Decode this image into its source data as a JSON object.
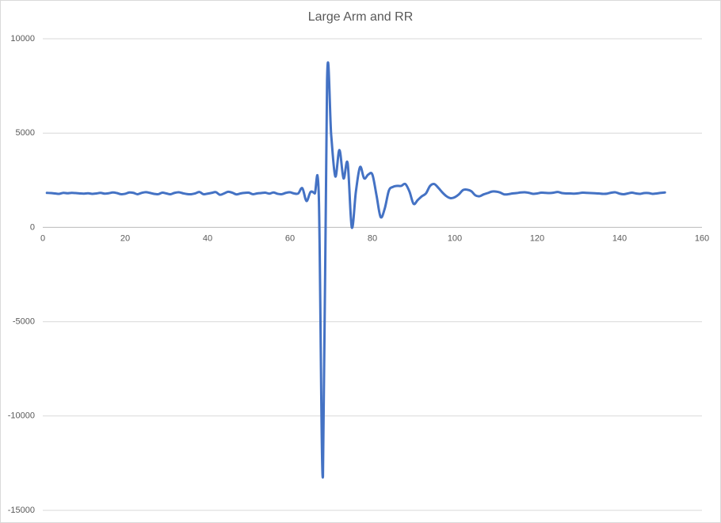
{
  "chart_data": {
    "type": "line",
    "title": "Large Arm and RR",
    "smooth": true,
    "grid": true,
    "xlim": [
      0,
      160
    ],
    "xticks": [
      0,
      20,
      40,
      60,
      80,
      100,
      120,
      140,
      160
    ],
    "ylim": [
      -15000,
      10000
    ],
    "yticks": [
      -15000,
      -10000,
      -5000,
      0,
      5000,
      10000
    ],
    "x": [
      1,
      2,
      3,
      4,
      5,
      6,
      7,
      8,
      9,
      10,
      11,
      12,
      13,
      14,
      15,
      16,
      17,
      18,
      19,
      20,
      21,
      22,
      23,
      24,
      25,
      26,
      27,
      28,
      29,
      30,
      31,
      32,
      33,
      34,
      35,
      36,
      37,
      38,
      39,
      40,
      41,
      42,
      43,
      44,
      45,
      46,
      47,
      48,
      49,
      50,
      51,
      52,
      53,
      54,
      55,
      56,
      57,
      58,
      59,
      60,
      61,
      62,
      63,
      64,
      65,
      66,
      67,
      68,
      69,
      70,
      71,
      72,
      73,
      74,
      75,
      76,
      77,
      78,
      79,
      80,
      81,
      82,
      83,
      84,
      85,
      86,
      87,
      88,
      89,
      90,
      91,
      92,
      93,
      94,
      95,
      96,
      97,
      98,
      99,
      100,
      101,
      102,
      103,
      104,
      105,
      106,
      107,
      108,
      109,
      110,
      111,
      112,
      113,
      114,
      115,
      116,
      117,
      118,
      119,
      120,
      121,
      122,
      123,
      124,
      125,
      126,
      127,
      128,
      129,
      130,
      131,
      132,
      133,
      134,
      135,
      136,
      137,
      138,
      139,
      140,
      141,
      142,
      143,
      144,
      145,
      146,
      147,
      148,
      149,
      150,
      151
    ],
    "series": [
      {
        "color": "#4472c4",
        "values": [
          1830,
          1820,
          1800,
          1780,
          1830,
          1810,
          1830,
          1820,
          1800,
          1790,
          1810,
          1780,
          1800,
          1830,
          1790,
          1810,
          1850,
          1820,
          1760,
          1780,
          1850,
          1830,
          1760,
          1830,
          1870,
          1830,
          1780,
          1760,
          1840,
          1800,
          1760,
          1830,
          1860,
          1810,
          1770,
          1760,
          1800,
          1880,
          1760,
          1790,
          1830,
          1870,
          1730,
          1800,
          1890,
          1840,
          1750,
          1800,
          1830,
          1840,
          1760,
          1800,
          1820,
          1840,
          1790,
          1850,
          1780,
          1760,
          1830,
          1860,
          1800,
          1800,
          2080,
          1400,
          1880,
          1800,
          1620,
          -13200,
          7800,
          4900,
          2700,
          4100,
          2600,
          3400,
          0,
          1900,
          3200,
          2600,
          2800,
          2800,
          1700,
          550,
          1000,
          1950,
          2150,
          2200,
          2200,
          2300,
          1900,
          1250,
          1450,
          1650,
          1800,
          2200,
          2300,
          2100,
          1850,
          1650,
          1550,
          1600,
          1750,
          1980,
          2000,
          1920,
          1700,
          1650,
          1750,
          1820,
          1900,
          1900,
          1850,
          1750,
          1760,
          1800,
          1820,
          1850,
          1860,
          1830,
          1780,
          1800,
          1840,
          1830,
          1820,
          1840,
          1880,
          1820,
          1800,
          1800,
          1790,
          1810,
          1840,
          1830,
          1820,
          1810,
          1800,
          1780,
          1790,
          1840,
          1860,
          1790,
          1760,
          1800,
          1840,
          1800,
          1780,
          1820,
          1820,
          1780,
          1800,
          1830,
          1850
        ]
      }
    ]
  }
}
